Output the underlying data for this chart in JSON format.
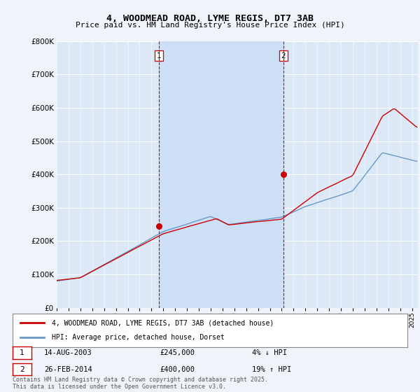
{
  "title1": "4, WOODMEAD ROAD, LYME REGIS, DT7 3AB",
  "title2": "Price paid vs. HM Land Registry's House Price Index (HPI)",
  "bg_color": "#f0f4fa",
  "plot_bg": "#dce8f5",
  "line1_color": "#cc0000",
  "line2_color": "#6699cc",
  "shade_color": "#ccdff5",
  "vline_color": "#cc0000",
  "sale1_year": 2003.62,
  "sale1_price": 245000,
  "sale2_year": 2014.15,
  "sale2_price": 400000,
  "legend1": "4, WOODMEAD ROAD, LYME REGIS, DT7 3AB (detached house)",
  "legend2": "HPI: Average price, detached house, Dorset",
  "ann1_label": "1",
  "ann1_date": "14-AUG-2003",
  "ann1_price": "£245,000",
  "ann1_pct": "4% ↓ HPI",
  "ann2_label": "2",
  "ann2_date": "26-FEB-2014",
  "ann2_price": "£400,000",
  "ann2_pct": "19% ↑ HPI",
  "footer": "Contains HM Land Registry data © Crown copyright and database right 2025.\nThis data is licensed under the Open Government Licence v3.0.",
  "ylim_max": 800000,
  "xmin": 1995,
  "xmax": 2025.5
}
